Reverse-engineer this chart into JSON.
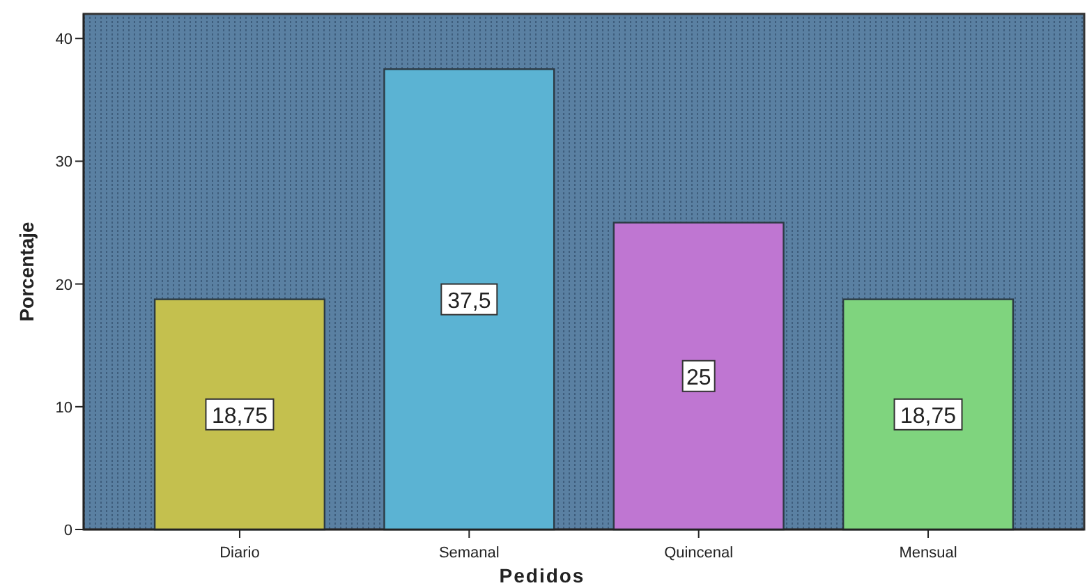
{
  "chart_data": {
    "type": "bar",
    "xlabel": "Pedidos",
    "ylabel": "Porcentaje",
    "categories": [
      "Diario",
      "Semanal",
      "Quincenal",
      "Mensual"
    ],
    "values": [
      18.75,
      37.5,
      25,
      18.75
    ],
    "colors": [
      "#c4c04e",
      "#5bb3d3",
      "#bf76d2",
      "#7fd47e"
    ],
    "value_labels": [
      "18,75",
      "37,5",
      "25",
      "18,75"
    ],
    "ylim": [
      0,
      42
    ],
    "yticks": [
      0,
      10,
      20,
      30,
      40
    ],
    "grid": false
  }
}
